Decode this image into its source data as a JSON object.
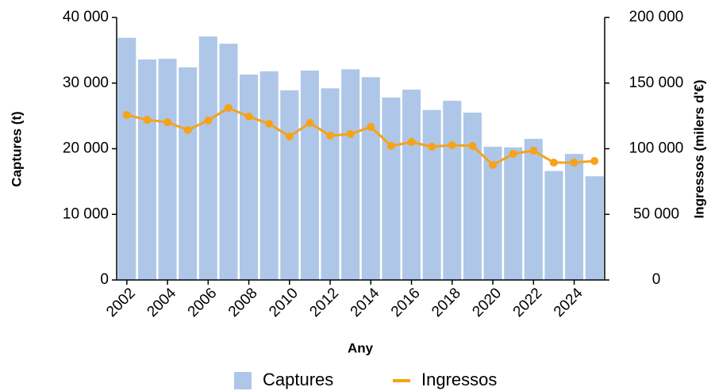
{
  "chart_data": {
    "type": "bar_line",
    "xlabel": "Any",
    "ylabel": "Captures (t)",
    "y2label": "Ingressos (milers d'€)",
    "x": [
      2002,
      2003,
      2004,
      2005,
      2006,
      2007,
      2008,
      2009,
      2010,
      2011,
      2012,
      2013,
      2014,
      2015,
      2016,
      2017,
      2018,
      2019,
      2020,
      2021,
      2022,
      2023,
      2024,
      2025
    ],
    "xlim": [
      2001.5,
      2025.5
    ],
    "xticks": [
      2002,
      2004,
      2006,
      2008,
      2010,
      2012,
      2014,
      2016,
      2018,
      2020,
      2022,
      2024
    ],
    "ylim": [
      0,
      40000
    ],
    "yticks": [
      0,
      {
        "value": 10000,
        "label": "10 000"
      },
      {
        "value": 20000,
        "label": "20 000"
      },
      {
        "value": 30000,
        "label": "30 000"
      },
      {
        "value": 40000,
        "label": "40 000"
      }
    ],
    "y2lim": [
      0,
      200000
    ],
    "y2ticks": [
      0,
      {
        "value": 50000,
        "label": "50 000"
      },
      {
        "value": 100000,
        "label": "100 000"
      },
      {
        "value": 150000,
        "label": "150 000"
      },
      {
        "value": 200000,
        "label": "200 000"
      }
    ],
    "series": [
      {
        "name": "Captures",
        "kind": "bar",
        "color": "#aec7e8",
        "values": [
          36900,
          33600,
          33700,
          32400,
          37100,
          36000,
          31300,
          31800,
          28900,
          31900,
          29200,
          32100,
          30900,
          27800,
          29000,
          25900,
          27300,
          25500,
          20300,
          20200,
          21500,
          16600,
          19200,
          15800
        ]
      },
      {
        "name": "Ingressos",
        "kind": "line",
        "axis": "y2",
        "color": "#f5a31a",
        "values": [
          125700,
          122000,
          120200,
          114200,
          121500,
          131100,
          124500,
          119000,
          109400,
          119600,
          110000,
          111200,
          116600,
          102100,
          105100,
          101500,
          102700,
          102100,
          87600,
          96100,
          98500,
          89400,
          89400,
          90600
        ]
      }
    ],
    "grid": false,
    "legend": "bottom"
  }
}
